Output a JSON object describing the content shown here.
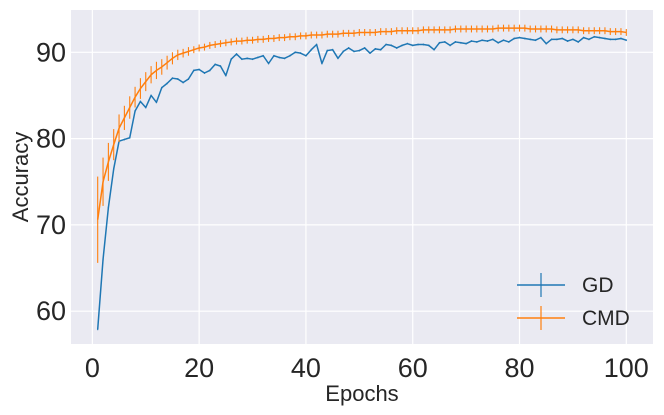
{
  "chart_data": {
    "type": "line",
    "xlabel": "Epochs",
    "ylabel": "Accuracy",
    "xlim": [
      -4,
      105
    ],
    "ylim": [
      56.2,
      94.9
    ],
    "xticks": [
      0,
      20,
      40,
      60,
      80,
      100
    ],
    "yticks": [
      60,
      70,
      80,
      90
    ],
    "xtick_labels": [
      "0",
      "20",
      "40",
      "60",
      "80",
      "100"
    ],
    "ytick_labels": [
      "60",
      "70",
      "80",
      "90"
    ],
    "grid": true,
    "legend_position": "lower-right",
    "series": [
      {
        "name": "GD",
        "color": "#1f77b4",
        "error_bars": true,
        "x": [
          1,
          2,
          3,
          4,
          5,
          6,
          7,
          8,
          9,
          10,
          11,
          12,
          13,
          14,
          15,
          16,
          17,
          18,
          19,
          20,
          21,
          22,
          23,
          24,
          25,
          26,
          27,
          28,
          29,
          30,
          31,
          32,
          33,
          34,
          35,
          36,
          37,
          38,
          39,
          40,
          41,
          42,
          43,
          44,
          45,
          46,
          47,
          48,
          49,
          50,
          51,
          52,
          53,
          54,
          55,
          56,
          57,
          58,
          59,
          60,
          61,
          62,
          63,
          64,
          65,
          66,
          67,
          68,
          69,
          70,
          71,
          72,
          73,
          74,
          75,
          76,
          77,
          78,
          79,
          80,
          81,
          82,
          83,
          84,
          85,
          86,
          87,
          88,
          89,
          90,
          91,
          92,
          93,
          94,
          95,
          96,
          97,
          98,
          99,
          100
        ],
        "y": [
          57.9,
          66.0,
          72.0,
          76.5,
          79.7,
          79.9,
          80.1,
          83.2,
          84.3,
          83.6,
          85.0,
          84.2,
          85.9,
          86.4,
          87.0,
          86.9,
          86.5,
          86.9,
          87.9,
          88.0,
          87.6,
          87.9,
          88.6,
          88.4,
          87.3,
          89.2,
          89.8,
          89.2,
          89.3,
          89.2,
          89.4,
          89.6,
          88.7,
          89.6,
          89.4,
          89.3,
          89.6,
          90.0,
          89.9,
          89.6,
          90.3,
          90.9,
          88.7,
          90.2,
          90.3,
          89.3,
          90.1,
          90.5,
          90.1,
          90.2,
          90.5,
          89.9,
          90.4,
          90.3,
          90.9,
          90.8,
          90.5,
          90.8,
          91.0,
          90.8,
          90.9,
          90.9,
          90.8,
          90.3,
          91.1,
          91.2,
          90.8,
          91.2,
          91.1,
          91.0,
          91.3,
          91.2,
          91.4,
          91.3,
          91.5,
          91.1,
          91.4,
          91.2,
          91.6,
          91.7,
          91.6,
          91.5,
          91.4,
          91.7,
          91.0,
          91.5,
          91.5,
          91.6,
          91.3,
          91.5,
          91.2,
          91.7,
          91.5,
          91.8,
          91.7,
          91.6,
          91.5,
          91.5,
          91.6,
          91.4
        ],
        "err": [
          0.1,
          0.1,
          0.1,
          0.1,
          0.1,
          0.1,
          0.1,
          0.1,
          0.1,
          0.1,
          0.1,
          0.1,
          0.1,
          0.1,
          0.1,
          0.1,
          0.1,
          0.1,
          0.1,
          0.1,
          0.1,
          0.1,
          0.1,
          0.1,
          0.1,
          0.1,
          0.1,
          0.1,
          0.1,
          0.1,
          0.1,
          0.1,
          0.1,
          0.1,
          0.1,
          0.1,
          0.1,
          0.1,
          0.1,
          0.1,
          0.1,
          0.1,
          0.1,
          0.1,
          0.1,
          0.1,
          0.1,
          0.1,
          0.1,
          0.1,
          0.1,
          0.1,
          0.1,
          0.1,
          0.1,
          0.1,
          0.1,
          0.1,
          0.1,
          0.1,
          0.1,
          0.1,
          0.1,
          0.1,
          0.1,
          0.1,
          0.1,
          0.1,
          0.1,
          0.1,
          0.1,
          0.1,
          0.1,
          0.1,
          0.1,
          0.1,
          0.1,
          0.1,
          0.1,
          0.1,
          0.1,
          0.1,
          0.1,
          0.1,
          0.1,
          0.1,
          0.1,
          0.1,
          0.1,
          0.1,
          0.1,
          0.1,
          0.1,
          0.1,
          0.1,
          0.1,
          0.1,
          0.1,
          0.1,
          0.1
        ]
      },
      {
        "name": "CMD",
        "color": "#ff7f0e",
        "error_bars": true,
        "x": [
          1,
          2,
          3,
          4,
          5,
          6,
          7,
          8,
          9,
          10,
          11,
          12,
          13,
          14,
          15,
          16,
          17,
          18,
          19,
          20,
          21,
          22,
          23,
          24,
          25,
          26,
          27,
          28,
          29,
          30,
          31,
          32,
          33,
          34,
          35,
          36,
          37,
          38,
          39,
          40,
          41,
          42,
          43,
          44,
          45,
          46,
          47,
          48,
          49,
          50,
          51,
          52,
          53,
          54,
          55,
          56,
          57,
          58,
          59,
          60,
          61,
          62,
          63,
          64,
          65,
          66,
          67,
          68,
          69,
          70,
          71,
          72,
          73,
          74,
          75,
          76,
          77,
          78,
          79,
          80,
          81,
          82,
          83,
          84,
          85,
          86,
          87,
          88,
          89,
          90,
          91,
          92,
          93,
          94,
          95,
          96,
          97,
          98,
          99,
          100
        ],
        "y": [
          70.6,
          75.0,
          77.3,
          79.3,
          81.2,
          82.4,
          83.6,
          84.8,
          85.8,
          86.6,
          87.4,
          87.9,
          88.3,
          88.8,
          89.3,
          89.7,
          89.9,
          90.1,
          90.3,
          90.5,
          90.6,
          90.8,
          90.9,
          91.0,
          91.1,
          91.2,
          91.3,
          91.3,
          91.4,
          91.4,
          91.5,
          91.5,
          91.6,
          91.6,
          91.7,
          91.7,
          91.8,
          91.8,
          91.9,
          91.9,
          92.0,
          92.0,
          92.0,
          92.1,
          92.1,
          92.1,
          92.2,
          92.2,
          92.2,
          92.3,
          92.3,
          92.3,
          92.3,
          92.4,
          92.4,
          92.4,
          92.5,
          92.5,
          92.5,
          92.5,
          92.5,
          92.6,
          92.6,
          92.6,
          92.6,
          92.6,
          92.6,
          92.7,
          92.7,
          92.7,
          92.7,
          92.7,
          92.7,
          92.7,
          92.7,
          92.8,
          92.8,
          92.8,
          92.8,
          92.8,
          92.8,
          92.7,
          92.7,
          92.7,
          92.7,
          92.7,
          92.6,
          92.6,
          92.6,
          92.6,
          92.6,
          92.5,
          92.5,
          92.5,
          92.5,
          92.5,
          92.4,
          92.4,
          92.4,
          92.3
        ],
        "err": [
          5.0,
          2.8,
          2.2,
          1.8,
          1.6,
          1.4,
          1.3,
          1.2,
          1.2,
          1.1,
          1.0,
          1.0,
          0.9,
          0.8,
          0.7,
          0.6,
          0.5,
          0.5,
          0.4,
          0.4,
          0.4,
          0.4,
          0.4,
          0.4,
          0.4,
          0.4,
          0.4,
          0.4,
          0.4,
          0.4,
          0.4,
          0.4,
          0.4,
          0.4,
          0.4,
          0.4,
          0.4,
          0.4,
          0.4,
          0.4,
          0.4,
          0.4,
          0.4,
          0.4,
          0.4,
          0.4,
          0.4,
          0.4,
          0.4,
          0.4,
          0.4,
          0.4,
          0.4,
          0.4,
          0.4,
          0.4,
          0.4,
          0.4,
          0.4,
          0.4,
          0.4,
          0.4,
          0.4,
          0.4,
          0.4,
          0.4,
          0.4,
          0.4,
          0.4,
          0.4,
          0.4,
          0.4,
          0.4,
          0.4,
          0.4,
          0.4,
          0.4,
          0.4,
          0.4,
          0.4,
          0.4,
          0.4,
          0.4,
          0.4,
          0.4,
          0.4,
          0.4,
          0.4,
          0.4,
          0.4,
          0.4,
          0.4,
          0.4,
          0.4,
          0.4,
          0.4,
          0.4,
          0.4,
          0.4,
          0.4
        ]
      }
    ]
  }
}
